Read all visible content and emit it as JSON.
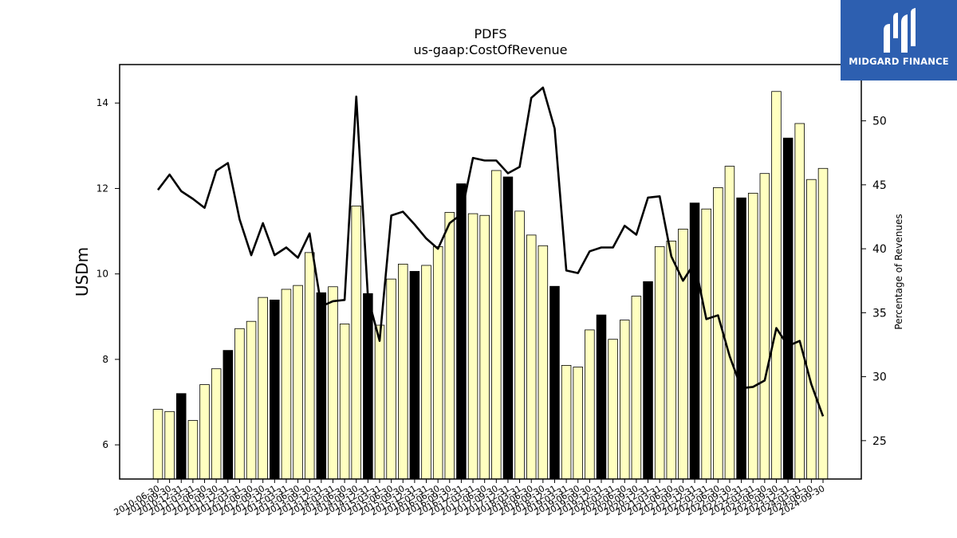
{
  "chart_data": {
    "type": "bar",
    "title": "PDFS",
    "subtitle": "us-gaap:CostOfRevenue",
    "ylabel": "USDm",
    "y2label": "Percentage of Revenues",
    "ylim": [
      5.2,
      14.9
    ],
    "y2lim": [
      22,
      54.4
    ],
    "yticks": [
      6,
      8,
      10,
      12,
      14
    ],
    "y2ticks": [
      25,
      30,
      35,
      40,
      45,
      50
    ],
    "categories": [
      "2010-06-30",
      "2010-09-30",
      "2010-12-31",
      "2011-03-31",
      "2011-06-30",
      "2011-09-30",
      "2011-12-31",
      "2012-03-31",
      "2012-06-30",
      "2012-09-30",
      "2012-12-31",
      "2013-03-31",
      "2013-06-30",
      "2013-09-30",
      "2013-12-31",
      "2014-03-31",
      "2014-06-30",
      "2014-09-30",
      "2014-12-31",
      "2015-03-31",
      "2015-06-30",
      "2015-09-30",
      "2015-12-31",
      "2016-03-31",
      "2016-06-30",
      "2016-09-30",
      "2016-12-31",
      "2017-03-31",
      "2017-06-30",
      "2017-09-30",
      "2017-12-31",
      "2018-03-31",
      "2018-06-30",
      "2018-09-30",
      "2018-12-31",
      "2019-03-31",
      "2019-06-30",
      "2019-09-30",
      "2019-12-31",
      "2020-03-31",
      "2020-06-30",
      "2020-09-30",
      "2020-12-31",
      "2021-03-31",
      "2021-06-30",
      "2021-09-30",
      "2021-12-31",
      "2022-03-31",
      "2022-06-30",
      "2022-09-30",
      "2022-12-31",
      "2023-03-31",
      "2023-06-30",
      "2023-09-30",
      "2023-12-31",
      "2024-03-31",
      "2024-06-30",
      "2024-09-30"
    ],
    "series": [
      {
        "kind": "bar",
        "values": [
          6.83,
          6.78,
          7.2,
          6.57,
          7.41,
          7.78,
          8.21,
          8.72,
          8.89,
          9.45,
          9.39,
          9.64,
          9.73,
          10.5,
          9.56,
          9.7,
          8.83,
          11.59,
          9.54,
          8.8,
          9.88,
          10.23,
          10.06,
          10.2,
          10.64,
          11.44,
          12.11,
          11.41,
          11.37,
          12.42,
          12.27,
          11.47,
          10.91,
          10.66,
          9.71,
          7.86,
          7.82,
          8.69,
          9.04,
          8.47,
          8.92,
          9.48,
          9.82,
          10.64,
          10.77,
          11.05,
          11.66,
          11.52,
          12.02,
          12.52,
          11.78,
          11.89,
          12.35,
          14.27,
          13.18,
          13.52,
          12.21,
          12.47
        ],
        "highlight_color": "#000000",
        "color": "#ffffc0",
        "highlight_every": 4,
        "highlight_offset": 2
      },
      {
        "kind": "line",
        "axis": "right",
        "color": "#000000",
        "values": [
          44.6,
          45.8,
          44.5,
          43.9,
          43.2,
          46.1,
          46.7,
          42.3,
          39.5,
          42.0,
          39.5,
          40.1,
          39.3,
          41.2,
          35.5,
          35.9,
          36.0,
          51.9,
          36.2,
          32.8,
          42.6,
          42.9,
          41.9,
          40.8,
          40.0,
          42.0,
          42.7,
          47.1,
          46.9,
          46.9,
          45.9,
          46.4,
          51.8,
          52.6,
          49.4,
          38.3,
          38.1,
          39.8,
          40.1,
          40.1,
          41.8,
          41.1,
          44.0,
          44.1,
          39.4,
          37.5,
          38.9,
          34.5,
          34.8,
          31.6,
          29.1,
          29.2,
          29.7,
          33.8,
          32.4,
          32.8,
          29.4,
          26.9
        ]
      }
    ],
    "grid": false,
    "legend": "none"
  },
  "logo": {
    "text": "MIDGARD FINANCE"
  }
}
